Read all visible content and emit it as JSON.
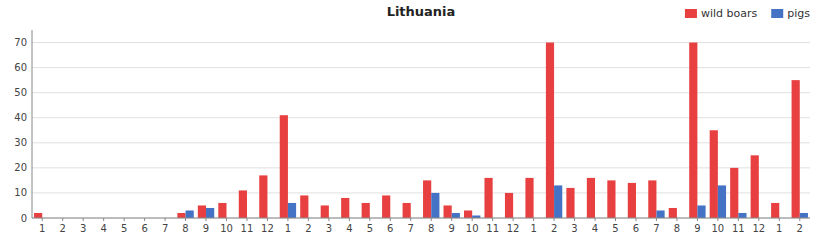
{
  "chart_data": {
    "type": "bar",
    "title": "Lithuania",
    "categories": [
      "1",
      "2",
      "3",
      "4",
      "5",
      "6",
      "7",
      "8",
      "9",
      "10",
      "11",
      "12",
      "1",
      "2",
      "3",
      "4",
      "5",
      "6",
      "7",
      "8",
      "9",
      "10",
      "11",
      "12",
      "1",
      "2",
      "3",
      "4",
      "5",
      "6",
      "7",
      "8",
      "9",
      "10",
      "11",
      "12",
      "1",
      "2"
    ],
    "series": [
      {
        "name": "wild boars",
        "color": "#e84040",
        "values": [
          2,
          0,
          0,
          0,
          0,
          0,
          0,
          2,
          5,
          6,
          11,
          17,
          41,
          9,
          5,
          8,
          6,
          9,
          6,
          15,
          5,
          3,
          16,
          10,
          16,
          70,
          12,
          16,
          15,
          14,
          15,
          4,
          70,
          35,
          20,
          25,
          6,
          55
        ]
      },
      {
        "name": "pigs",
        "color": "#4472c4",
        "values": [
          0,
          0,
          0,
          0,
          0,
          0,
          0,
          3,
          4,
          0,
          0,
          0,
          6,
          0,
          0,
          0,
          0,
          0,
          0,
          10,
          2,
          1,
          0,
          0,
          0,
          13,
          0,
          0,
          0,
          0,
          3,
          0,
          5,
          13,
          2,
          0,
          0,
          2
        ]
      }
    ],
    "ylim": [
      0,
      75
    ],
    "yticks": [
      0,
      10,
      20,
      30,
      40,
      50,
      60,
      70
    ],
    "grid": true,
    "legend": "upper right"
  }
}
